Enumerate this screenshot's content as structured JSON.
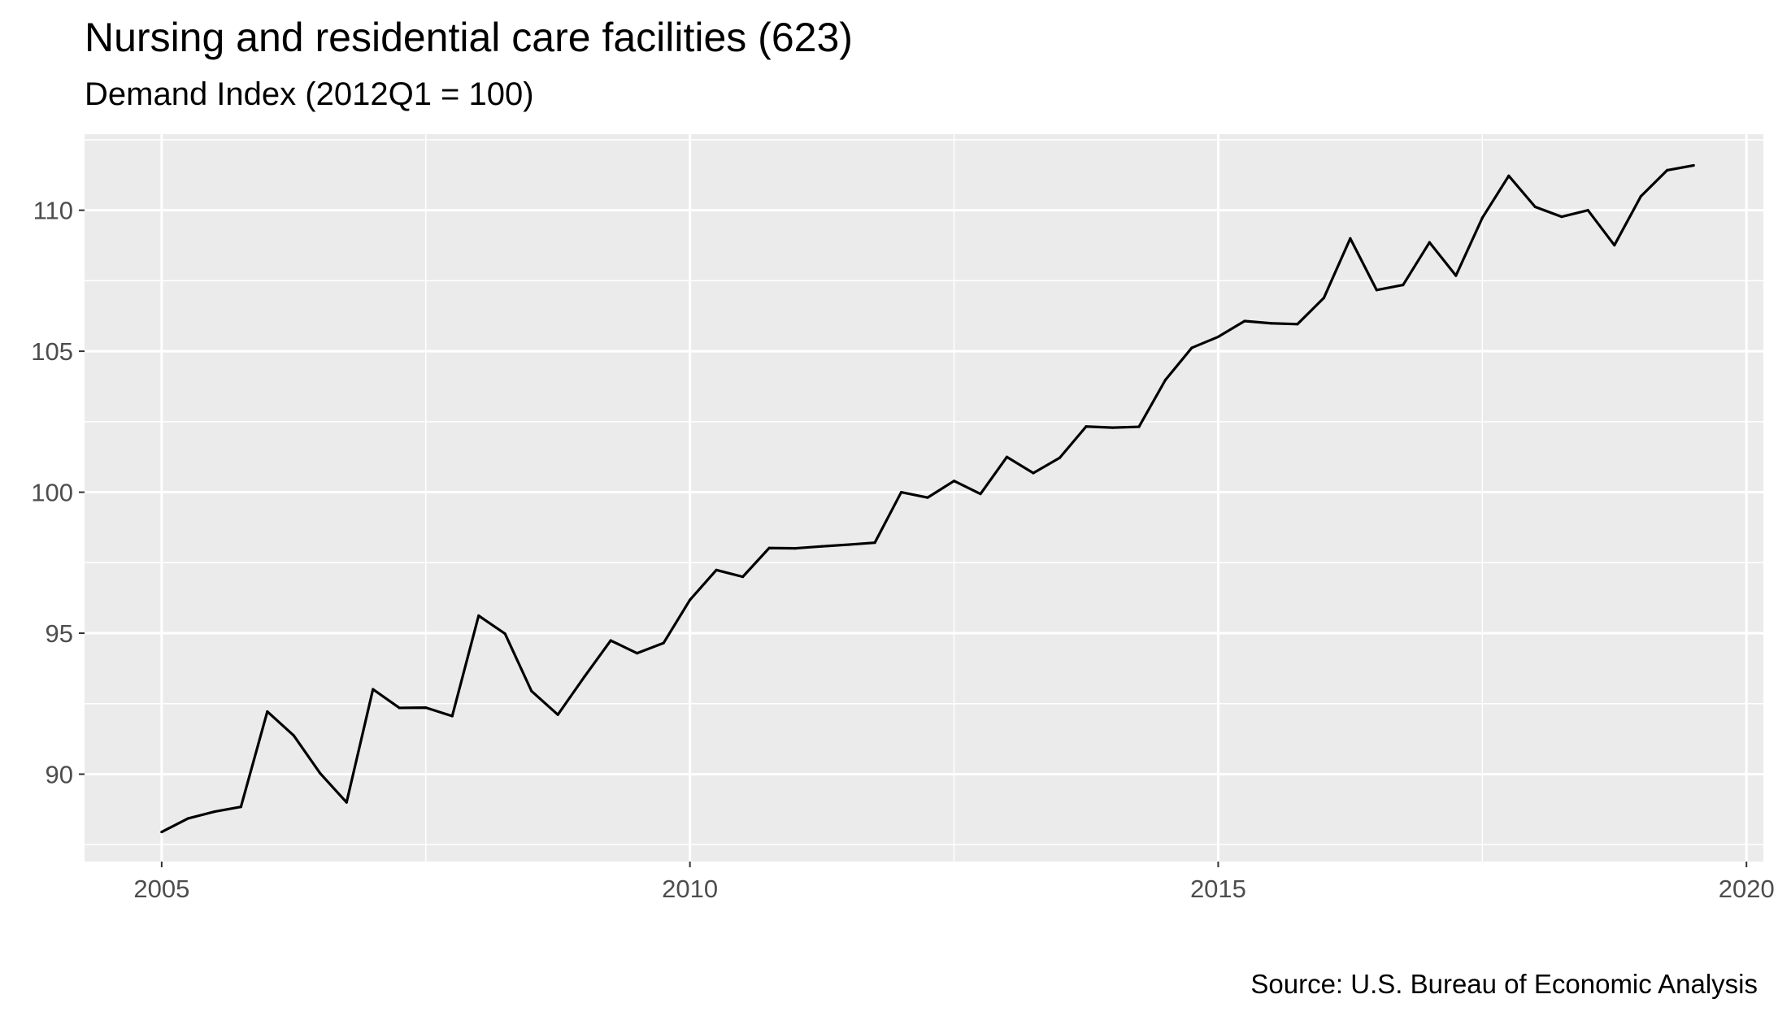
{
  "chart_data": {
    "type": "line",
    "title": "Nursing and residential care facilities (623)",
    "subtitle": "Demand Index (2012Q1 = 100)",
    "caption": "Source: U.S. Bureau of Economic Analysis",
    "xlabel": "",
    "ylabel": "",
    "xlim": [
      2004.27,
      2020.16
    ],
    "ylim": [
      86.9,
      112.7
    ],
    "x_ticks": [
      2005,
      2010,
      2015,
      2020
    ],
    "x_tick_labels": [
      "2005",
      "2010",
      "2015",
      "2020"
    ],
    "y_ticks": [
      90,
      95,
      100,
      105,
      110
    ],
    "y_tick_labels": [
      "90",
      "95",
      "100",
      "105",
      "110"
    ],
    "grid": true,
    "legend": "none",
    "colors": {
      "panel": "#ebebeb",
      "grid": "#ffffff",
      "line": "#000000"
    },
    "series": [
      {
        "x": [
          2005.0,
          2005.25,
          2005.5,
          2005.75,
          2006.0,
          2006.25,
          2006.5,
          2006.75,
          2007.0,
          2007.25,
          2007.5,
          2007.75,
          2008.0,
          2008.25,
          2008.5,
          2008.75,
          2009.0,
          2009.25,
          2009.5,
          2009.75,
          2010.0,
          2010.25,
          2010.5,
          2010.75,
          2011.0,
          2011.25,
          2011.5,
          2011.75,
          2012.0,
          2012.25,
          2012.5,
          2012.75,
          2013.0,
          2013.25,
          2013.5,
          2013.75,
          2014.0,
          2014.25,
          2014.5,
          2014.75,
          2015.0,
          2015.25,
          2015.5,
          2015.75,
          2016.0,
          2016.25,
          2016.5,
          2016.75,
          2017.0,
          2017.25,
          2017.5,
          2017.75,
          2018.0,
          2018.25,
          2018.5,
          2018.75,
          2019.0,
          2019.25,
          2019.5
        ],
        "values": [
          87.95,
          88.43,
          88.67,
          88.84,
          92.22,
          91.37,
          90.03,
          89.0,
          93.01,
          92.35,
          92.36,
          92.06,
          95.62,
          94.98,
          92.95,
          92.11,
          93.45,
          94.74,
          94.29,
          94.65,
          96.18,
          97.24,
          97.0,
          98.02,
          98.01,
          98.08,
          98.14,
          98.21,
          100.0,
          99.81,
          100.4,
          99.94,
          101.25,
          100.68,
          101.22,
          102.33,
          102.29,
          102.32,
          103.98,
          105.12,
          105.51,
          106.07,
          105.99,
          105.96,
          106.89,
          109.0,
          107.17,
          107.35,
          108.86,
          107.68,
          109.73,
          111.22,
          110.12,
          109.77,
          110.0,
          108.76,
          110.49,
          111.42,
          111.59
        ]
      }
    ]
  }
}
